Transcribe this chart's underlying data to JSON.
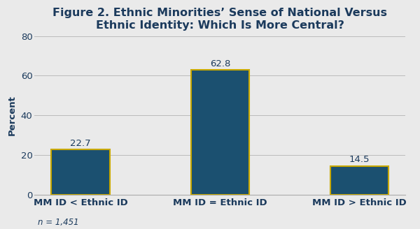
{
  "title": "Figure 2. Ethnic Minorities’ Sense of National Versus\nEthnic Identity: Which Is More Central?",
  "categories": [
    "MM ID < Ethnic ID",
    "MM ID = Ethnic ID",
    "MM ID > Ethnic ID"
  ],
  "values": [
    22.7,
    62.8,
    14.5
  ],
  "bar_color": "#1b5070",
  "bar_edge_color": "#c8a800",
  "bar_edge_width": 1.5,
  "ylabel": "Percent",
  "ylim": [
    0,
    80
  ],
  "yticks": [
    0,
    20,
    40,
    60,
    80
  ],
  "footnote": "n = 1,451",
  "background_color": "#eaeaea",
  "plot_bg_color": "#eaeaea",
  "title_fontsize": 11.5,
  "label_fontsize": 9.5,
  "tick_fontsize": 9.5,
  "annotation_fontsize": 9.5,
  "footnote_fontsize": 8.5,
  "title_color": "#1b3a5c",
  "axis_label_color": "#1b3a5c",
  "tick_color": "#1b3a5c",
  "annotation_color": "#1b3a5c",
  "bar_width": 0.42
}
